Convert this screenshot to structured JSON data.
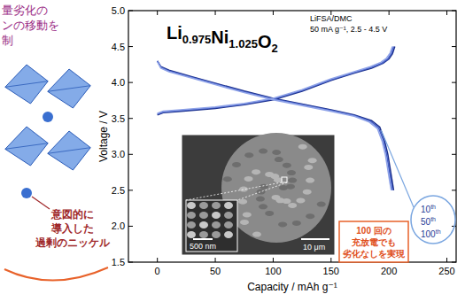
{
  "chart_data": {
    "type": "line",
    "title": "Li0.975Ni1.025O2",
    "subtitle": [
      "LiFSA/DMC",
      "50 mA g⁻¹, 2.5 - 4.5 V"
    ],
    "x_label": "Capacity / mAh g⁻¹",
    "y_label": "Voltage / V",
    "xlim": [
      -25,
      258
    ],
    "ylim": [
      1.5,
      5.0
    ],
    "xticks": [
      0,
      50,
      100,
      150,
      200,
      250
    ],
    "yticks": [
      1.5,
      {
        "value": 2,
        "label": "2.0"
      },
      2.5,
      {
        "value": 3,
        "label": "3.0"
      },
      3.5,
      {
        "value": 4,
        "label": "4.0"
      },
      4.5,
      {
        "value": 5,
        "label": "5.0"
      }
    ],
    "grid": false,
    "legend": "bottom-right",
    "series": [
      {
        "name": "10th",
        "color": "#1b2f8a",
        "x": [
          0,
          5,
          20,
          50,
          75,
          100,
          125,
          150,
          170,
          185,
          195,
          200,
          203,
          205,
          null,
          0,
          3,
          10,
          30,
          50,
          75,
          100,
          125,
          150,
          170,
          185,
          192,
          196,
          199,
          201,
          203,
          204
        ],
        "values": [
          3.55,
          3.58,
          3.6,
          3.64,
          3.69,
          3.76,
          3.88,
          4.03,
          4.13,
          4.2,
          4.27,
          4.33,
          4.4,
          4.5,
          null,
          4.3,
          4.22,
          4.17,
          4.08,
          3.99,
          3.88,
          3.78,
          3.7,
          3.62,
          3.55,
          3.47,
          3.38,
          3.2,
          3.0,
          2.8,
          2.6,
          2.5
        ]
      },
      {
        "name": "50th",
        "color": "#4661c8",
        "x": [
          0,
          5,
          20,
          50,
          75,
          100,
          125,
          150,
          170,
          185,
          194,
          199,
          202,
          204,
          null,
          0,
          3,
          10,
          30,
          50,
          75,
          100,
          125,
          150,
          170,
          184,
          191,
          195,
          198,
          200,
          202,
          203
        ],
        "values": [
          3.56,
          3.59,
          3.61,
          3.65,
          3.7,
          3.77,
          3.89,
          4.04,
          4.14,
          4.21,
          4.27,
          4.33,
          4.4,
          4.5,
          null,
          4.3,
          4.21,
          4.16,
          4.07,
          3.98,
          3.87,
          3.77,
          3.69,
          3.61,
          3.54,
          3.46,
          3.37,
          3.2,
          3.0,
          2.8,
          2.6,
          2.5
        ]
      },
      {
        "name": "100th",
        "color": "#8fa3e8",
        "x": [
          0,
          5,
          20,
          50,
          75,
          100,
          125,
          150,
          170,
          184,
          193,
          198,
          201,
          203,
          null,
          0,
          3,
          10,
          30,
          50,
          75,
          100,
          125,
          150,
          170,
          183,
          190,
          194,
          197,
          199,
          201,
          202
        ],
        "values": [
          3.57,
          3.6,
          3.62,
          3.66,
          3.71,
          3.78,
          3.9,
          4.05,
          4.15,
          4.22,
          4.28,
          4.34,
          4.41,
          4.5,
          null,
          4.29,
          4.2,
          4.15,
          4.06,
          3.97,
          3.86,
          3.76,
          3.68,
          3.6,
          3.53,
          3.45,
          3.36,
          3.19,
          2.99,
          2.79,
          2.59,
          2.5
        ]
      }
    ],
    "annotation_box": [
      "100 回の",
      "充放電でも",
      "劣化なしを実現"
    ],
    "inset_scale_bars": [
      "10 μm",
      "500 nm"
    ]
  },
  "diagram": {
    "heading_lines": [
      "量劣化の",
      "ンの移動を",
      "制"
    ],
    "label_lines": [
      "意図的に",
      "導入した",
      "過剰のニッケル"
    ]
  }
}
